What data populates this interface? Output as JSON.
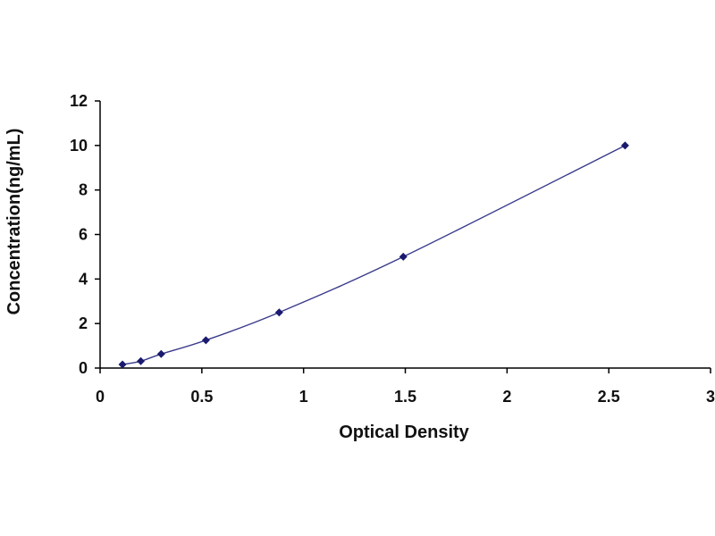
{
  "chart_data": {
    "type": "scatter",
    "title": "",
    "xlabel": "Optical Density",
    "ylabel": "Concentration(ng/mL)",
    "xlim": [
      0,
      3
    ],
    "ylim": [
      0,
      12
    ],
    "x_ticks": [
      0,
      0.5,
      1,
      1.5,
      2,
      2.5,
      3
    ],
    "y_ticks": [
      0,
      2,
      4,
      6,
      8,
      10,
      12
    ],
    "x_tick_labels": [
      "0",
      "0.5",
      "1",
      "1.5",
      "2",
      "2.5",
      "3"
    ],
    "y_tick_labels": [
      "0",
      "2",
      "4",
      "6",
      "8",
      "10",
      "12"
    ],
    "grid": false,
    "series": [
      {
        "x": [
          0.11,
          0.2,
          0.3,
          0.52,
          0.88,
          1.49,
          2.58
        ],
        "y": [
          0.16,
          0.31,
          0.63,
          1.25,
          2.5,
          5,
          10
        ],
        "fitted_curve": true
      }
    ],
    "colors": {
      "points": "#1a1a6e",
      "curve": "#3a3a8c",
      "axis": "#000000"
    }
  }
}
